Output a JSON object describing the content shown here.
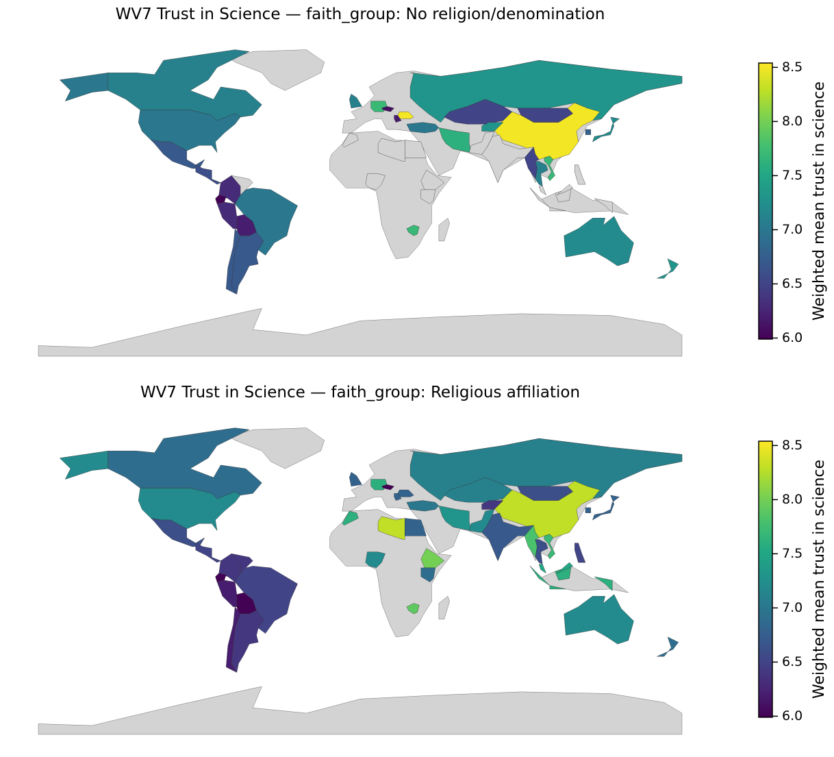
{
  "maps": [
    {
      "title": "WV7 Trust in Science — faith_group: No religion/denomination",
      "colormap": "viridis",
      "missing_color": "#d3d3d3",
      "values": [
        7.1,
        7.0,
        6.7,
        6.6,
        6.3,
        null,
        6.0,
        6.3,
        6.2,
        7.0,
        6.7,
        6.7,
        7.3,
        6.5,
        6.5,
        8.5,
        7.6,
        7.0,
        null,
        null,
        6.5,
        7.1,
        7.7,
        7.2,
        6.8,
        7.2,
        7.3,
        7.7,
        7.7,
        6.1,
        8.5,
        6.2,
        7.1,
        null,
        null,
        null,
        null,
        null,
        null,
        null,
        null,
        null,
        7.3
      ],
      "colorbar": {
        "label": "Weighted mean trust in science",
        "lim": [
          5.99,
          8.54
        ],
        "ticks": [
          {
            "value": 6,
            "label": "6.0"
          },
          6.5,
          {
            "value": 7,
            "label": "7.0"
          },
          7.5,
          {
            "value": 8,
            "label": "8.0"
          },
          8.5
        ]
      }
    },
    {
      "title": "WV7 Trust in Science — faith_group: Religious affiliation",
      "colormap": "viridis",
      "missing_color": "#d3d3d3",
      "values": [
        6.9,
        7.2,
        6.6,
        6.5,
        6.4,
        6.4,
        6.0,
        6.2,
        6.0,
        6.5,
        6.4,
        6.2,
        7.1,
        7.1,
        6.6,
        8.3,
        7.3,
        7.0,
        6.7,
        7.2,
        7.8,
        6.6,
        7.7,
        6.8,
        6.8,
        7.2,
        6.9,
        7.9,
        7.6,
        6.0,
        6.8,
        6.8,
        6.8,
        8.0,
        6.9,
        7.2,
        8.3,
        6.8,
        7.6,
        7.6,
        6.5,
        7.5,
        6.4
      ],
      "colorbar": {
        "label": "Weighted mean trust in science",
        "lim": [
          5.99,
          8.54
        ],
        "ticks": [
          {
            "value": 6,
            "label": "6.0"
          },
          6.5,
          {
            "value": 7,
            "label": "7.0"
          },
          7.5,
          {
            "value": 8,
            "label": "8.0"
          },
          8.5
        ]
      }
    }
  ]
}
